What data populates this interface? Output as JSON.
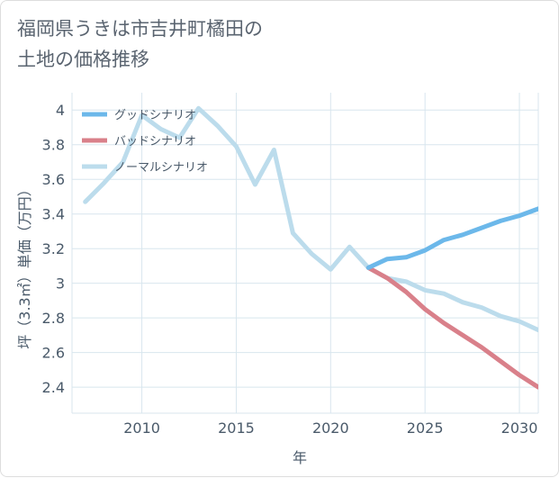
{
  "title_line1": "福岡県うきは市吉井町橘田の",
  "title_line2": "土地の価格推移",
  "chart_data": {
    "type": "line",
    "title": "福岡県うきは市吉井町橘田の土地の価格推移",
    "xlabel": "年",
    "ylabel": "坪（3.3㎡）単価（万円）",
    "xlim": [
      2006.3,
      2031
    ],
    "ylim": [
      2.25,
      4.1
    ],
    "x_ticks": [
      2010,
      2015,
      2020,
      2025,
      2030
    ],
    "y_ticks": [
      2.4,
      2.6,
      2.8,
      3,
      3.2,
      3.4,
      3.6,
      3.8,
      4
    ],
    "x_tick_labels": [
      "2010",
      "2015",
      "2020",
      "2025",
      "2030"
    ],
    "y_tick_labels": [
      "2.4",
      "2.6",
      "2.8",
      "3",
      "3.2",
      "3.4",
      "3.6",
      "3.8",
      "4"
    ],
    "grid": true,
    "legend_position": "top-left",
    "series": [
      {
        "name": "グッドシナリオ",
        "color": "#6cb8ea",
        "x": [
          2022,
          2023,
          2024,
          2025,
          2026,
          2027,
          2028,
          2029,
          2030,
          2031
        ],
        "values": [
          3.09,
          3.14,
          3.15,
          3.19,
          3.25,
          3.28,
          3.32,
          3.36,
          3.39,
          3.43
        ]
      },
      {
        "name": "バッドシナリオ",
        "color": "#d9808a",
        "x": [
          2022,
          2023,
          2024,
          2025,
          2026,
          2027,
          2028,
          2029,
          2030,
          2031
        ],
        "values": [
          3.09,
          3.03,
          2.95,
          2.85,
          2.77,
          2.7,
          2.63,
          2.55,
          2.47,
          2.4
        ]
      },
      {
        "name": "ノーマルシナリオ",
        "color": "#bcdcec",
        "x": [
          2007,
          2008,
          2009,
          2010,
          2011,
          2012,
          2013,
          2014,
          2015,
          2016,
          2017,
          2018,
          2019,
          2020,
          2021,
          2022,
          2023,
          2024,
          2025,
          2026,
          2027,
          2028,
          2029,
          2030,
          2031
        ],
        "values": [
          3.47,
          3.58,
          3.7,
          3.97,
          3.89,
          3.84,
          4.01,
          3.91,
          3.79,
          3.57,
          3.77,
          3.29,
          3.17,
          3.08,
          3.21,
          3.09,
          3.03,
          3.01,
          2.96,
          2.94,
          2.89,
          2.86,
          2.81,
          2.78,
          2.73
        ]
      }
    ]
  }
}
